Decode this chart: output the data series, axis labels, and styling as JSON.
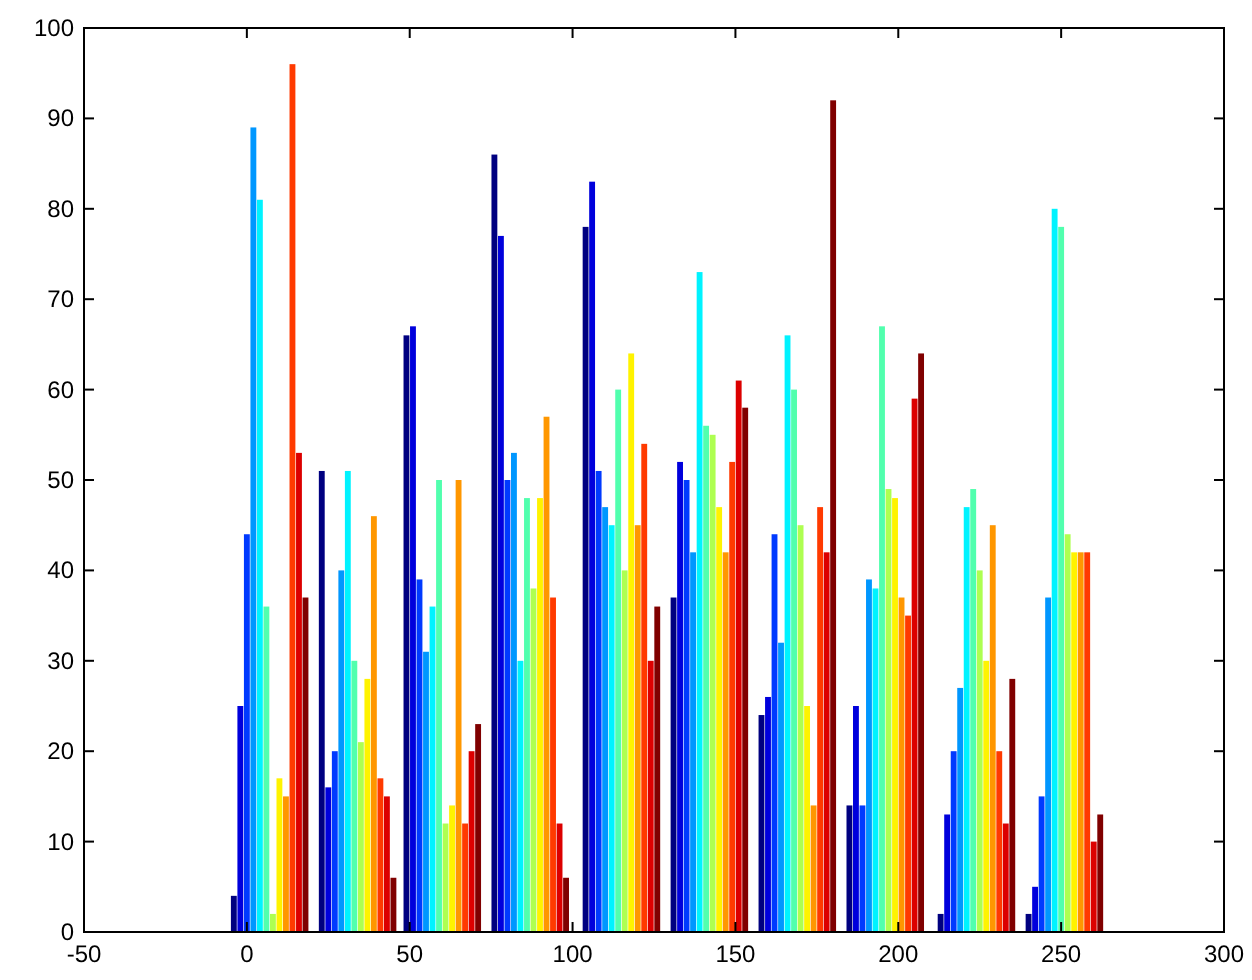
{
  "chart_data": {
    "type": "bar",
    "x": [
      -4,
      -2,
      0,
      2,
      4,
      6,
      8,
      10,
      12,
      14,
      16,
      18,
      23,
      25,
      27,
      29,
      31,
      33,
      35,
      37,
      39,
      41,
      43,
      45,
      49,
      51,
      53,
      55,
      57,
      59,
      61,
      63,
      65,
      67,
      69,
      71,
      76,
      78,
      80,
      82,
      84,
      86,
      88,
      90,
      92,
      94,
      96,
      98,
      104,
      106,
      108,
      110,
      112,
      114,
      116,
      118,
      120,
      122,
      124,
      126,
      131,
      133,
      135,
      137,
      139,
      141,
      143,
      145,
      147,
      149,
      151,
      153,
      158,
      160,
      162,
      164,
      166,
      168,
      170,
      172,
      174,
      176,
      178,
      180,
      185,
      187,
      189,
      191,
      193,
      195,
      197,
      199,
      201,
      203,
      205,
      207,
      213,
      215,
      217,
      219,
      221,
      223,
      225,
      227,
      229,
      231,
      233,
      235,
      240,
      242,
      244,
      246,
      248,
      250,
      252,
      254,
      256,
      258,
      260,
      262
    ],
    "values": [
      4,
      25,
      44,
      89,
      81,
      36,
      2,
      17,
      15,
      96,
      53,
      37,
      51,
      16,
      20,
      40,
      51,
      30,
      21,
      28,
      46,
      17,
      15,
      6,
      66,
      67,
      39,
      31,
      36,
      50,
      12,
      14,
      50,
      12,
      20,
      23,
      86,
      77,
      50,
      53,
      30,
      48,
      38,
      48,
      57,
      37,
      12,
      6,
      78,
      83,
      51,
      47,
      45,
      60,
      40,
      64,
      45,
      54,
      30,
      36,
      37,
      52,
      50,
      42,
      73,
      56,
      55,
      47,
      42,
      52,
      61,
      58,
      24,
      26,
      44,
      32,
      66,
      60,
      45,
      25,
      14,
      47,
      42,
      92,
      14,
      25,
      14,
      39,
      38,
      67,
      49,
      48,
      37,
      35,
      59,
      64,
      2,
      13,
      20,
      27,
      47,
      49,
      40,
      30,
      45,
      20,
      12,
      28,
      2,
      5,
      15,
      37,
      80,
      78,
      44,
      42,
      42,
      42,
      10,
      13
    ],
    "colors": [
      "#000080",
      "#0000dc",
      "#003aff",
      "#0097ff",
      "#00f3ff",
      "#51ffae",
      "#aeff51",
      "#fff300",
      "#ff9700",
      "#ff3a00",
      "#dc0000",
      "#800000",
      "#000080",
      "#0000dc",
      "#003aff",
      "#0097ff",
      "#00f3ff",
      "#51ffae",
      "#aeff51",
      "#fff300",
      "#ff9700",
      "#ff3a00",
      "#dc0000",
      "#800000",
      "#000080",
      "#0000dc",
      "#003aff",
      "#0097ff",
      "#00f3ff",
      "#51ffae",
      "#aeff51",
      "#fff300",
      "#ff9700",
      "#ff3a00",
      "#dc0000",
      "#800000",
      "#000080",
      "#0000dc",
      "#003aff",
      "#0097ff",
      "#00f3ff",
      "#51ffae",
      "#aeff51",
      "#fff300",
      "#ff9700",
      "#ff3a00",
      "#dc0000",
      "#800000",
      "#000080",
      "#0000dc",
      "#003aff",
      "#0097ff",
      "#00f3ff",
      "#51ffae",
      "#aeff51",
      "#fff300",
      "#ff9700",
      "#ff3a00",
      "#dc0000",
      "#800000",
      "#000080",
      "#0000dc",
      "#003aff",
      "#0097ff",
      "#00f3ff",
      "#51ffae",
      "#aeff51",
      "#fff300",
      "#ff9700",
      "#ff3a00",
      "#dc0000",
      "#800000",
      "#000080",
      "#0000dc",
      "#003aff",
      "#0097ff",
      "#00f3ff",
      "#51ffae",
      "#aeff51",
      "#fff300",
      "#ff9700",
      "#ff3a00",
      "#dc0000",
      "#800000",
      "#000080",
      "#0000dc",
      "#003aff",
      "#0097ff",
      "#00f3ff",
      "#51ffae",
      "#aeff51",
      "#fff300",
      "#ff9700",
      "#ff3a00",
      "#dc0000",
      "#800000",
      "#000080",
      "#0000dc",
      "#003aff",
      "#0097ff",
      "#00f3ff",
      "#51ffae",
      "#aeff51",
      "#fff300",
      "#ff9700",
      "#ff3a00",
      "#dc0000",
      "#800000",
      "#000080",
      "#0000dc",
      "#003aff",
      "#0097ff",
      "#00f3ff",
      "#51ffae",
      "#aeff51",
      "#fff300",
      "#ff9700",
      "#ff3a00",
      "#dc0000",
      "#800000"
    ],
    "xlim": [
      -50,
      300
    ],
    "ylim": [
      0,
      100
    ],
    "xticks": [
      -50,
      0,
      50,
      100,
      150,
      200,
      250,
      300
    ],
    "yticks": [
      0,
      10,
      20,
      30,
      40,
      50,
      60,
      70,
      80,
      90,
      100
    ]
  }
}
